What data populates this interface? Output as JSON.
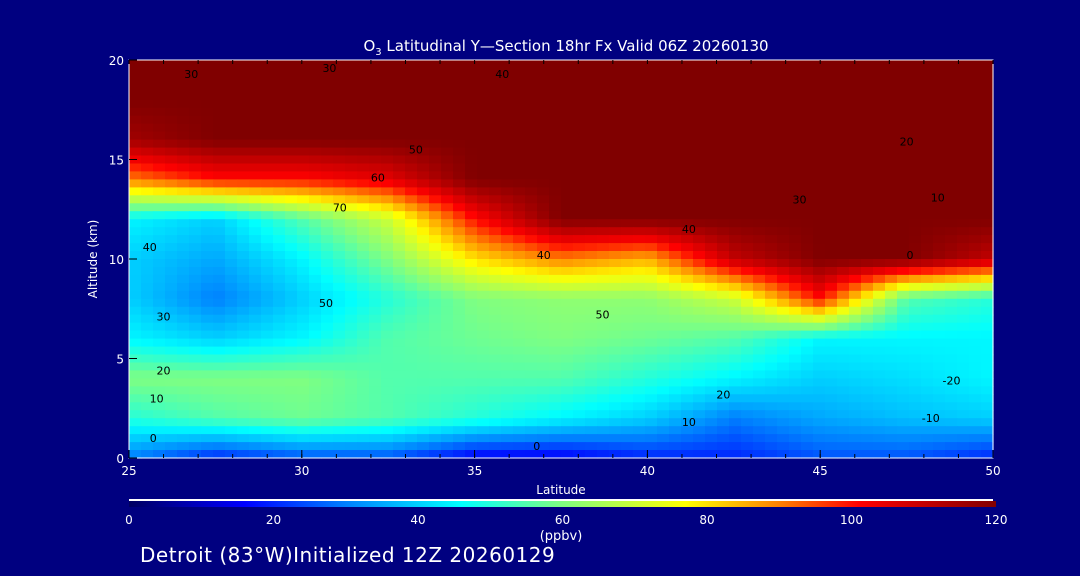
{
  "chart_data": {
    "type": "heatmap",
    "title_prefix": "O",
    "title_subscript": "3",
    "title_rest": " Latitudinal Y—Section 18hr  Fx Valid 06Z 20260130",
    "xlabel": "Latitude",
    "ylabel": "Altitude (km)",
    "xlim": [
      25,
      50
    ],
    "ylim": [
      0,
      20
    ],
    "x_ticks": [
      "25",
      "30",
      "35",
      "40",
      "45",
      "50"
    ],
    "y_ticks": [
      "0",
      "5",
      "10",
      "15",
      "20"
    ],
    "lat": [
      25,
      27.5,
      30,
      32.5,
      35,
      37.5,
      40,
      42.5,
      45,
      47.5,
      50
    ],
    "alt": [
      20,
      18,
      16,
      14,
      12,
      10,
      8,
      6,
      4,
      2,
      0
    ],
    "values_ppbv": [
      [
        120,
        120,
        120,
        120,
        120,
        120,
        120,
        120,
        120,
        120,
        120
      ],
      [
        120,
        120,
        120,
        120,
        120,
        120,
        120,
        120,
        120,
        120,
        120
      ],
      [
        115,
        120,
        120,
        120,
        120,
        120,
        120,
        120,
        120,
        120,
        120
      ],
      [
        90,
        100,
        100,
        105,
        120,
        120,
        120,
        120,
        120,
        120,
        120
      ],
      [
        45,
        40,
        55,
        70,
        100,
        120,
        120,
        120,
        120,
        120,
        120
      ],
      [
        40,
        35,
        45,
        60,
        80,
        90,
        85,
        110,
        120,
        120,
        110
      ],
      [
        40,
        30,
        40,
        50,
        60,
        62,
        62,
        70,
        100,
        55,
        50
      ],
      [
        45,
        40,
        45,
        55,
        58,
        60,
        58,
        55,
        45,
        45,
        45
      ],
      [
        60,
        60,
        60,
        55,
        55,
        55,
        50,
        45,
        40,
        42,
        45
      ],
      [
        50,
        55,
        58,
        55,
        50,
        45,
        40,
        30,
        35,
        38,
        40
      ],
      [
        30,
        20,
        25,
        25,
        15,
        15,
        20,
        20,
        25,
        25,
        20
      ]
    ],
    "colorbar": {
      "ticks": [
        "0",
        "20",
        "40",
        "60",
        "80",
        "100",
        "120"
      ],
      "range": [
        0,
        120
      ],
      "units": "(ppbv)",
      "stops": [
        [
          0,
          "#000060"
        ],
        [
          16,
          "#0000ff"
        ],
        [
          30,
          "#0080ff"
        ],
        [
          46,
          "#00ffff"
        ],
        [
          60,
          "#80ff80"
        ],
        [
          77,
          "#ffff00"
        ],
        [
          90,
          "#ff8000"
        ],
        [
          101,
          "#ff0000"
        ],
        [
          120,
          "#800000"
        ]
      ]
    },
    "contour_labels": [
      {
        "text": "30",
        "lat": 26.8,
        "alt": 19.3
      },
      {
        "text": "30",
        "lat": 30.8,
        "alt": 19.6
      },
      {
        "text": "40",
        "lat": 35.8,
        "alt": 19.3
      },
      {
        "text": "50",
        "lat": 33.3,
        "alt": 15.5
      },
      {
        "text": "60",
        "lat": 32.2,
        "alt": 14.1
      },
      {
        "text": "70",
        "lat": 31.1,
        "alt": 12.6
      },
      {
        "text": "40",
        "lat": 25.6,
        "alt": 10.6
      },
      {
        "text": "50",
        "lat": 30.7,
        "alt": 7.8
      },
      {
        "text": "30",
        "lat": 26.0,
        "alt": 7.1
      },
      {
        "text": "20",
        "lat": 26.0,
        "alt": 4.4
      },
      {
        "text": "10",
        "lat": 25.8,
        "alt": 3.0
      },
      {
        "text": "0",
        "lat": 25.7,
        "alt": 1.0
      },
      {
        "text": "0",
        "lat": 36.8,
        "alt": 0.6
      },
      {
        "text": "40",
        "lat": 37.0,
        "alt": 10.2
      },
      {
        "text": "50",
        "lat": 38.7,
        "alt": 7.2
      },
      {
        "text": "40",
        "lat": 41.2,
        "alt": 11.5
      },
      {
        "text": "20",
        "lat": 42.2,
        "alt": 3.2
      },
      {
        "text": "10",
        "lat": 41.2,
        "alt": 1.8
      },
      {
        "text": "30",
        "lat": 44.4,
        "alt": 13.0
      },
      {
        "text": "20",
        "lat": 47.5,
        "alt": 15.9
      },
      {
        "text": "10",
        "lat": 48.4,
        "alt": 13.1
      },
      {
        "text": "0",
        "lat": 47.6,
        "alt": 10.2
      },
      {
        "text": "-20",
        "lat": 48.8,
        "alt": 3.9
      },
      {
        "text": "-10",
        "lat": 48.2,
        "alt": 2.0
      }
    ]
  },
  "footer": "Detroit (83°W)Initialized 12Z 20260129"
}
